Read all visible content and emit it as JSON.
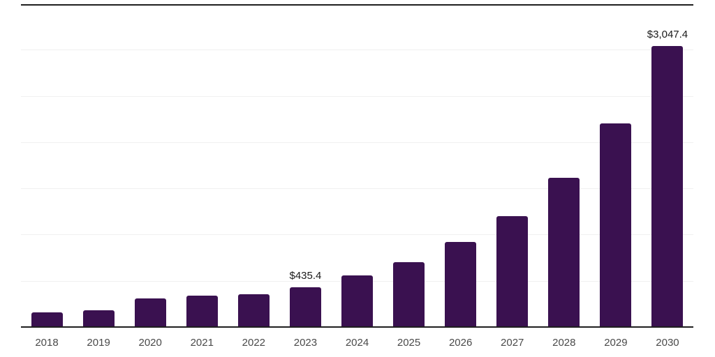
{
  "chart": {
    "background_color": "#ffffff",
    "bar_color": "#3a1150",
    "axis_color": "#1f1f1f",
    "gridline_color": "#f0f0f0",
    "tick_label_color": "#4a4a4a",
    "value_label_color": "#1a1a1a"
  },
  "chart_data": {
    "type": "bar",
    "title": "",
    "xlabel": "",
    "ylabel": "",
    "categories": [
      "2018",
      "2019",
      "2020",
      "2021",
      "2022",
      "2023",
      "2024",
      "2025",
      "2026",
      "2027",
      "2028",
      "2029",
      "2030"
    ],
    "values": [
      165,
      185,
      315,
      350,
      360,
      435.4,
      565,
      710,
      925,
      1210,
      1620,
      2210,
      3047.4
    ],
    "data_labels": {
      "2023": "$435.4",
      "2030": "$3,047.4"
    },
    "ylim": [
      0,
      3500
    ],
    "grid_step": 500,
    "grid": true,
    "legend": false,
    "y_axis_labels_visible": false,
    "currency_prefix": "$"
  }
}
